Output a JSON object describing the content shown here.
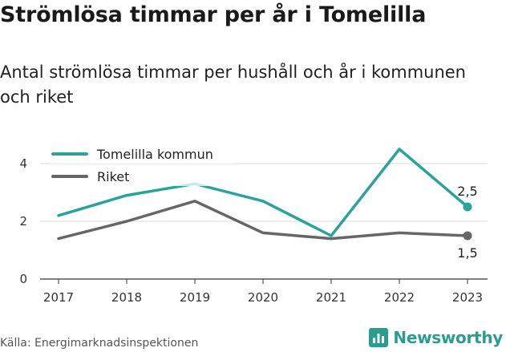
{
  "header": {
    "title": "Strömlösa timmar per år i Tomelilla",
    "subtitle": "Antal strömlösa timmar per hushåll och år i kommunen och riket"
  },
  "footer": {
    "source": "Källa: Energimarknadsinspektionen",
    "brand": "Newsworthy",
    "brand_icon": "bar-chart-logo-icon"
  },
  "colors": {
    "tomelilla": "#2aa39a",
    "riket": "#666666",
    "grid": "#d9d9d9",
    "brand": "#2a9d8f"
  },
  "chart_data": {
    "type": "line",
    "x": [
      "2017",
      "2018",
      "2019",
      "2020",
      "2021",
      "2022",
      "2023"
    ],
    "ylim": [
      0,
      5
    ],
    "yticks": [
      "0",
      "2",
      "4"
    ],
    "ytick_values": [
      0,
      2,
      4
    ],
    "grid": true,
    "legend_position": "top-left",
    "series": [
      {
        "name": "Tomelilla kommun",
        "values": [
          2.2,
          2.9,
          3.3,
          2.7,
          1.5,
          4.5,
          2.5
        ],
        "end_label": "2,5"
      },
      {
        "name": "Riket",
        "values": [
          1.4,
          2.0,
          2.7,
          1.6,
          1.4,
          1.6,
          1.5
        ],
        "end_label": "1,5"
      }
    ]
  }
}
